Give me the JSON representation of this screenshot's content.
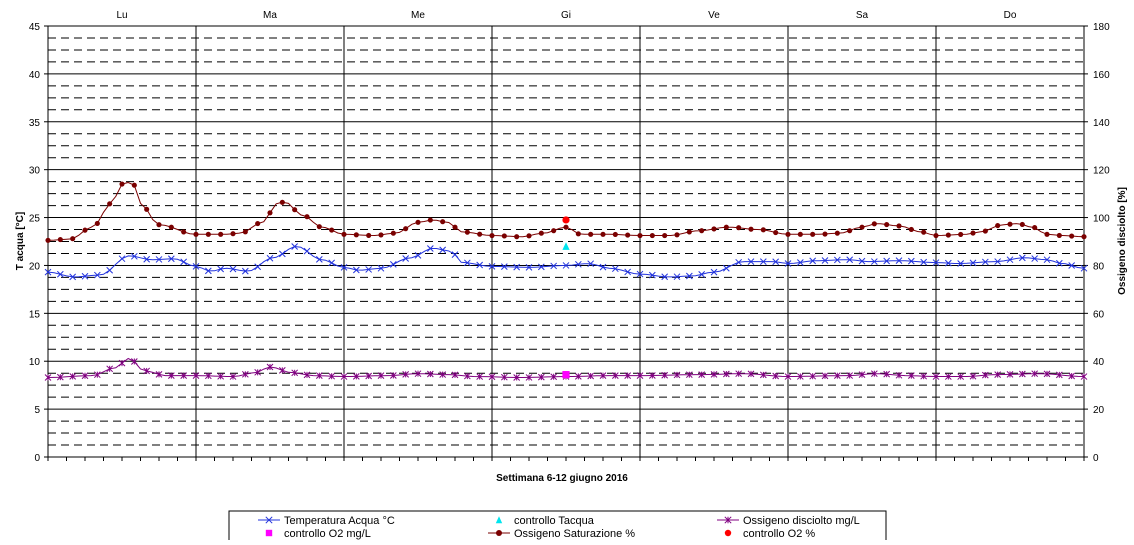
{
  "chart_data": {
    "type": "line",
    "title": "",
    "xlabel": "Settimana   6-12 giugno  2016",
    "ylabel_left": "T acqua [°C]",
    "ylabel_right": "Ossigeno disciolto [%]",
    "ylim_left": [
      0,
      45
    ],
    "ylim_right": [
      0,
      180
    ],
    "yticks_left": [
      "0",
      "5",
      "10",
      "15",
      "20",
      "25",
      "30",
      "35",
      "40",
      "45"
    ],
    "yticks_right": [
      "0",
      "20",
      "40",
      "60",
      "80",
      "100",
      "120",
      "140",
      "160",
      "180"
    ],
    "days": [
      "Lu",
      "Ma",
      "Me",
      "Gi",
      "Ve",
      "Sa",
      "Do"
    ],
    "grid": true,
    "legend_position": "bottom",
    "colors": {
      "temperatura": "#2233dd",
      "ossigeno_mgl": "#800080",
      "saturazione": "#7a0000",
      "controllo_tacqua": "#00e5ee",
      "controllo_o2_mgl": "#ff00ff",
      "controllo_o2_pct": "#ff0000"
    },
    "series": [
      {
        "name": "Temperatura Acqua °C",
        "axis": "left",
        "marker": "x",
        "key": "temperatura",
        "keyframes": [
          [
            0.0,
            19.3
          ],
          [
            0.18,
            18.8
          ],
          [
            0.35,
            19.0
          ],
          [
            0.55,
            21.0
          ],
          [
            0.7,
            20.6
          ],
          [
            0.85,
            20.7
          ],
          [
            1.0,
            19.9
          ],
          [
            1.1,
            19.4
          ],
          [
            1.2,
            19.7
          ],
          [
            1.35,
            19.4
          ],
          [
            1.52,
            20.8
          ],
          [
            1.68,
            22.0
          ],
          [
            1.85,
            20.6
          ],
          [
            2.0,
            19.8
          ],
          [
            2.1,
            19.5
          ],
          [
            2.25,
            19.7
          ],
          [
            2.45,
            20.8
          ],
          [
            2.6,
            21.8
          ],
          [
            2.72,
            21.5
          ],
          [
            2.8,
            20.3
          ],
          [
            3.0,
            19.9
          ],
          [
            3.25,
            19.8
          ],
          [
            3.5,
            20.0
          ],
          [
            3.65,
            20.2
          ],
          [
            3.8,
            19.7
          ],
          [
            4.0,
            19.1
          ],
          [
            4.2,
            18.8
          ],
          [
            4.35,
            18.9
          ],
          [
            4.5,
            19.3
          ],
          [
            4.7,
            20.4
          ],
          [
            4.9,
            20.4
          ],
          [
            5.0,
            20.2
          ],
          [
            5.2,
            20.5
          ],
          [
            5.4,
            20.6
          ],
          [
            5.55,
            20.4
          ],
          [
            5.75,
            20.5
          ],
          [
            6.0,
            20.3
          ],
          [
            6.15,
            20.2
          ],
          [
            6.4,
            20.4
          ],
          [
            6.6,
            20.8
          ],
          [
            6.75,
            20.6
          ],
          [
            6.85,
            20.2
          ],
          [
            7.0,
            19.7
          ]
        ]
      },
      {
        "name": "controllo Tacqua",
        "axis": "left",
        "marker": "triangle",
        "key": "controllo_tacqua",
        "points": [
          [
            3.5,
            22.0
          ]
        ]
      },
      {
        "name": "Ossigeno disciolto mg/L",
        "axis": "left",
        "marker": "star",
        "key": "ossigeno_mgl",
        "keyframes": [
          [
            0.0,
            8.3
          ],
          [
            0.3,
            8.5
          ],
          [
            0.45,
            9.3
          ],
          [
            0.55,
            10.3
          ],
          [
            0.65,
            9.0
          ],
          [
            0.8,
            8.5
          ],
          [
            1.0,
            8.5
          ],
          [
            1.25,
            8.4
          ],
          [
            1.4,
            8.8
          ],
          [
            1.5,
            9.4
          ],
          [
            1.65,
            8.8
          ],
          [
            1.8,
            8.5
          ],
          [
            2.0,
            8.4
          ],
          [
            2.3,
            8.5
          ],
          [
            2.5,
            8.7
          ],
          [
            2.7,
            8.6
          ],
          [
            2.9,
            8.4
          ],
          [
            3.2,
            8.3
          ],
          [
            3.5,
            8.4
          ],
          [
            3.8,
            8.5
          ],
          [
            4.0,
            8.5
          ],
          [
            4.4,
            8.6
          ],
          [
            4.7,
            8.7
          ],
          [
            5.0,
            8.4
          ],
          [
            5.4,
            8.5
          ],
          [
            5.6,
            8.7
          ],
          [
            5.8,
            8.5
          ],
          [
            6.0,
            8.4
          ],
          [
            6.2,
            8.4
          ],
          [
            6.4,
            8.6
          ],
          [
            6.7,
            8.7
          ],
          [
            7.0,
            8.4
          ]
        ]
      },
      {
        "name": "controllo O2 mg/L",
        "axis": "left",
        "marker": "square",
        "key": "controllo_o2_mgl",
        "points": [
          [
            3.5,
            8.6
          ]
        ]
      },
      {
        "name": "Ossigeno Saturazione %",
        "axis": "right",
        "marker": "dot",
        "key": "saturazione",
        "keyframes": [
          [
            0.0,
            90.5
          ],
          [
            0.15,
            91.0
          ],
          [
            0.3,
            96.0
          ],
          [
            0.43,
            106.0
          ],
          [
            0.5,
            114.0
          ],
          [
            0.57,
            115.0
          ],
          [
            0.62,
            106.0
          ],
          [
            0.75,
            97.0
          ],
          [
            1.0,
            93.0
          ],
          [
            1.2,
            93.0
          ],
          [
            1.3,
            93.5
          ],
          [
            1.45,
            98.0
          ],
          [
            1.5,
            102.0
          ],
          [
            1.55,
            106.0
          ],
          [
            1.6,
            106.5
          ],
          [
            1.72,
            101.0
          ],
          [
            1.85,
            96.0
          ],
          [
            2.0,
            93.0
          ],
          [
            2.2,
            92.5
          ],
          [
            2.35,
            93.5
          ],
          [
            2.5,
            98.0
          ],
          [
            2.6,
            99.0
          ],
          [
            2.7,
            98.0
          ],
          [
            2.8,
            94.0
          ],
          [
            3.0,
            92.5
          ],
          [
            3.2,
            92.0
          ],
          [
            3.35,
            93.5
          ],
          [
            3.5,
            96.0
          ],
          [
            3.6,
            93.0
          ],
          [
            3.8,
            93.0
          ],
          [
            4.0,
            92.5
          ],
          [
            4.2,
            92.5
          ],
          [
            4.4,
            94.5
          ],
          [
            4.6,
            96.0
          ],
          [
            4.8,
            95.0
          ],
          [
            5.0,
            93.0
          ],
          [
            5.2,
            93.0
          ],
          [
            5.35,
            93.5
          ],
          [
            5.5,
            96.0
          ],
          [
            5.6,
            97.5
          ],
          [
            5.75,
            96.5
          ],
          [
            5.9,
            94.0
          ],
          [
            6.0,
            92.5
          ],
          [
            6.2,
            93.0
          ],
          [
            6.3,
            94.0
          ],
          [
            6.45,
            97.0
          ],
          [
            6.55,
            97.5
          ],
          [
            6.65,
            96.0
          ],
          [
            6.75,
            93.0
          ],
          [
            6.85,
            92.5
          ],
          [
            7.0,
            92.0
          ]
        ]
      },
      {
        "name": "controllo O2 %",
        "axis": "right",
        "marker": "circle",
        "key": "controllo_o2_pct",
        "points": [
          [
            3.5,
            99.0
          ]
        ]
      }
    ]
  }
}
